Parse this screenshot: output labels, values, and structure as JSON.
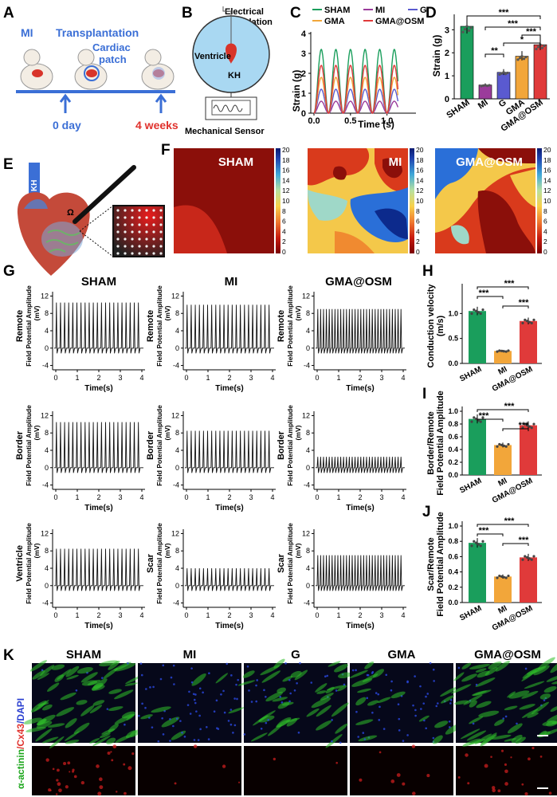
{
  "panels": {
    "A": {
      "letter": "A",
      "mi": "MI",
      "transplantation": "Transplantation",
      "cardiac_patch_1": "Cardiac",
      "cardiac_patch_2": "patch",
      "day0": "0 day",
      "week4": "4 weeks"
    },
    "B": {
      "letter": "B",
      "stim1": "Electrical",
      "stim2": "Stimulation",
      "ventricle": "Ventricle",
      "kh": "KH",
      "sensor": "Mechanical Sensor"
    },
    "C": {
      "letter": "C",
      "ylabel": "Strain (g)",
      "xlabel": "Time (s)",
      "legend": [
        "SHAM",
        "MI",
        "G",
        "GMA",
        "GMA@OSM"
      ],
      "legend_colors": [
        "#1a9e5c",
        "#9b3b9b",
        "#5a5ad0",
        "#f2a63a",
        "#e03a3a"
      ],
      "amplitudes": [
        3.2,
        0.6,
        1.2,
        1.8,
        2.4
      ],
      "yticks": [
        "0",
        "1",
        "2",
        "3",
        "4"
      ],
      "xticks": [
        "0.0",
        "0.5",
        "1.0"
      ]
    },
    "D": {
      "letter": "D",
      "ylabel": "Strain (g)",
      "yticks": [
        "0",
        "1",
        "2",
        "3"
      ],
      "categories": [
        "SHAM",
        "MI",
        "G",
        "GMA",
        "GMA@OSM"
      ],
      "values": [
        3.15,
        0.6,
        1.15,
        1.85,
        2.35
      ],
      "colors": [
        "#1a9e5c",
        "#9b3b9b",
        "#5a5ad0",
        "#f2a63a",
        "#e03a3a"
      ],
      "sig": [
        "***",
        "***",
        "**",
        "*",
        "***"
      ]
    },
    "E": {
      "letter": "E",
      "kh": "KH"
    },
    "F": {
      "letter": "F",
      "maps": [
        "SHAM",
        "MI",
        "GMA@OSM"
      ],
      "cbar": [
        "20",
        "18",
        "16",
        "14",
        "12",
        "10",
        "8",
        "6",
        "4",
        "2",
        "0"
      ]
    },
    "G": {
      "letter": "G",
      "cols": [
        "SHAM",
        "MI",
        "GMA@OSM"
      ],
      "rows": [
        [
          "Remote",
          "Remote",
          "Remote"
        ],
        [
          "Border",
          "Border",
          "Border"
        ],
        [
          "Ventricle",
          "Scar",
          "Scar"
        ]
      ],
      "ylabel": "Field Potential Amplitude",
      "unit": "(mV)",
      "xlabel": "Time(s)",
      "yticks": [
        "12",
        "8",
        "4",
        "0",
        "-4"
      ],
      "xticks": [
        "0",
        "1",
        "2",
        "3",
        "4"
      ],
      "amps": [
        [
          10.5,
          10,
          9
        ],
        [
          10.5,
          8.5,
          2.5
        ],
        [
          8.5,
          4,
          7
        ]
      ]
    },
    "H": {
      "letter": "H",
      "ylabel": "Conduction velocity",
      "unit": "(m/s)",
      "yticks": [
        "0.0",
        "0.5",
        "1.0"
      ],
      "categories": [
        "SHAM",
        "MI",
        "GMA@OSM"
      ],
      "values": [
        1.05,
        0.25,
        0.85
      ],
      "sig": [
        "***",
        "***",
        "***"
      ]
    },
    "I": {
      "letter": "I",
      "ylabel1": "Border/Remote",
      "ylabel2": "Field Potential Amplitude",
      "yticks": [
        "0.0",
        "0.2",
        "0.4",
        "0.6",
        "0.8",
        "1.0"
      ],
      "categories": [
        "SHAM",
        "MI",
        "GMA@OSM"
      ],
      "values": [
        0.88,
        0.47,
        0.78
      ],
      "sig": [
        "***",
        "***",
        "***"
      ]
    },
    "J": {
      "letter": "J",
      "ylabel1": "Scar/Remote",
      "ylabel2": "Field Potential Amplitude",
      "yticks": [
        "0.0",
        "0.2",
        "0.4",
        "0.6",
        "0.8",
        "1.0"
      ],
      "categories": [
        "SHAM",
        "MI",
        "GMA@OSM"
      ],
      "values": [
        0.78,
        0.34,
        0.59
      ],
      "sig": [
        "***",
        "***",
        "***"
      ]
    },
    "K": {
      "letter": "K",
      "cols": [
        "SHAM",
        "MI",
        "G",
        "GMA",
        "GMA@OSM"
      ],
      "stain_a": "α-actinin",
      "stain_b": "/Cx43",
      "stain_c": "/DAPI"
    }
  },
  "colors": {
    "sham": "#1a9e5c",
    "mi": "#f2a63a",
    "osm": "#e03a3a",
    "blue_label": "#3b6fd6",
    "red_label": "#e0312c"
  }
}
